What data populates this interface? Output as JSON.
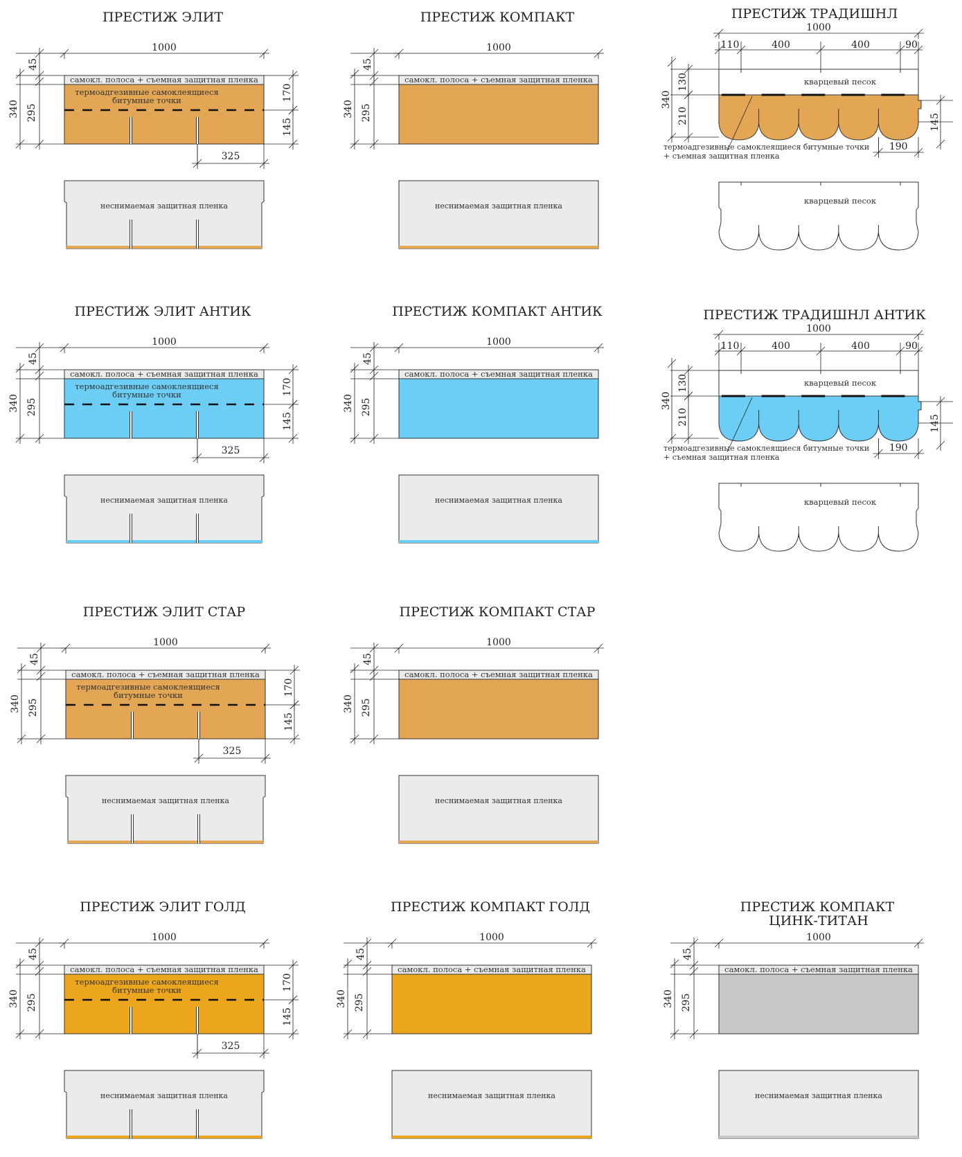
{
  "labels": {
    "strip": "самокл. полоса + съемная защитная пленка",
    "thermo_line1": "термоадгезивные самоклеящиеся",
    "thermo_line2": "битумные точки",
    "film": "неснимаемая защитная пленка",
    "sand": "кварцевый песок",
    "trad_note_1": "термоадгезивные самоклеящиеся битумные точки",
    "trad_note_2": "+ съемная защитная пленка"
  },
  "colors": {
    "orange": "#E2A654",
    "blue": "#6DCEF5",
    "gold": "#ECA61E",
    "grey": "#C8C8C8",
    "film": "#EBEBEB",
    "sand": "#FFFFFF"
  },
  "panels": [
    {
      "id": "elite",
      "title": "ПРЕСТИЖ ЭЛИТ",
      "kind": "elite",
      "color": "orange",
      "dims": {
        "width": "1000",
        "top": "45",
        "total": "340",
        "body": "295",
        "upper": "170",
        "lower": "145",
        "slot": "325"
      }
    },
    {
      "id": "compact",
      "title": "ПРЕСТИЖ КОМПАКТ",
      "kind": "compact",
      "color": "orange",
      "dims": {
        "width": "1000",
        "top": "45",
        "total": "340",
        "body": "295"
      }
    },
    {
      "id": "trad",
      "title": "ПРЕСТИЖ ТРАДИШНЛ",
      "kind": "trad",
      "color": "orange",
      "dims": {
        "width": "1000",
        "seg1": "110",
        "seg2": "400",
        "seg3": "400",
        "seg4": "90",
        "total": "340",
        "upper": "130",
        "lower": "210",
        "tab": "145",
        "tabw": "190"
      }
    },
    {
      "id": "elite-antik",
      "title": "ПРЕСТИЖ ЭЛИТ АНТИК",
      "kind": "elite",
      "color": "blue",
      "dims": {
        "width": "1000",
        "top": "45",
        "total": "340",
        "body": "295",
        "upper": "170",
        "lower": "145",
        "slot": "325"
      }
    },
    {
      "id": "compact-antik",
      "title": "ПРЕСТИЖ КОМПАКТ АНТИК",
      "kind": "compact",
      "color": "blue",
      "dims": {
        "width": "1000",
        "top": "45",
        "total": "340",
        "body": "295"
      }
    },
    {
      "id": "trad-antik",
      "title": "ПРЕСТИЖ ТРАДИШНЛ АНТИК",
      "kind": "trad",
      "color": "blue",
      "dims": {
        "width": "1000",
        "seg1": "110",
        "seg2": "400",
        "seg3": "400",
        "seg4": "90",
        "total": "340",
        "upper": "130",
        "lower": "210",
        "tab": "145",
        "tabw": "190"
      }
    },
    {
      "id": "elite-star",
      "title": "ПРЕСТИЖ ЭЛИТ СТАР",
      "kind": "elite",
      "color": "orange",
      "dims": {
        "width": "1000",
        "top": "45",
        "total": "340",
        "body": "295",
        "upper": "170",
        "lower": "145",
        "slot": "325"
      }
    },
    {
      "id": "compact-star",
      "title": "ПРЕСТИЖ КОМПАКТ СТАР",
      "kind": "compact",
      "color": "orange",
      "dims": {
        "width": "1000",
        "top": "45",
        "total": "340",
        "body": "295"
      }
    },
    {
      "id": "elite-gold",
      "title": "ПРЕСТИЖ ЭЛИТ ГОЛД",
      "kind": "elite",
      "color": "gold",
      "dims": {
        "width": "1000",
        "top": "45",
        "total": "340",
        "body": "295",
        "upper": "170",
        "lower": "145",
        "slot": "325"
      }
    },
    {
      "id": "compact-gold",
      "title": "ПРЕСТИЖ КОМПАКТ ГОЛД",
      "kind": "compact",
      "color": "gold",
      "dims": {
        "width": "1000",
        "top": "45",
        "total": "340",
        "body": "295"
      }
    },
    {
      "id": "compact-zinc",
      "title": "ПРЕСТИЖ КОМПАКТ",
      "title2": "ЦИНК-ТИТАН",
      "kind": "compact",
      "color": "grey",
      "dims": {
        "width": "1000",
        "top": "45",
        "total": "340",
        "body": "295"
      }
    }
  ]
}
